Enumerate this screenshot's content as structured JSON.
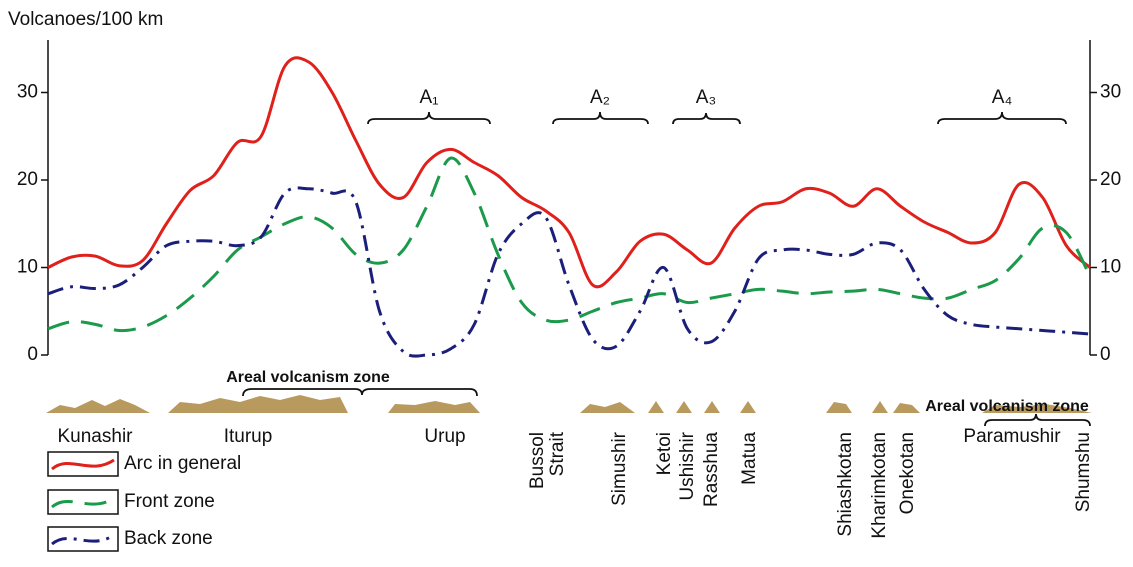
{
  "chart_data": {
    "type": "line",
    "ylabel": "Volcanoes/100 km",
    "categories": [
      null,
      null,
      null,
      null,
      null,
      null,
      null,
      null,
      null,
      null,
      null,
      null,
      null,
      null,
      null,
      null,
      null,
      null,
      null,
      null,
      null,
      null,
      null,
      null,
      null,
      null,
      null,
      null,
      null,
      null,
      null,
      null,
      null,
      null,
      null,
      null,
      null,
      null,
      null,
      null,
      null,
      null,
      null,
      null,
      null
    ],
    "series": [
      {
        "name": "Arc in general",
        "color": "#e0201b",
        "style": "solid",
        "values": [
          10,
          11.2,
          11.3,
          10.2,
          10.8,
          15,
          18.8,
          20.5,
          24.3,
          25,
          33,
          33.5,
          30,
          24.5,
          19.5,
          18,
          22,
          23.5,
          22,
          20.5,
          18,
          16.5,
          14,
          8,
          9.5,
          13,
          13.8,
          12,
          10.5,
          14.5,
          17,
          17.5,
          19,
          18.5,
          17,
          19,
          17,
          15.2,
          14,
          12.8,
          14,
          19.5,
          18,
          12.5,
          10
        ]
      },
      {
        "name": "Front zone",
        "color": "#1a9a4a",
        "style": "dashed",
        "values": [
          3,
          3.8,
          3.5,
          2.8,
          3.2,
          4.5,
          6.5,
          9,
          12,
          13.5,
          15,
          15.8,
          14.5,
          11.5,
          10.5,
          12,
          17,
          22.5,
          18.5,
          11.5,
          6,
          4,
          4,
          5,
          6,
          6.5,
          7,
          6,
          6.5,
          7,
          7.5,
          7.3,
          7,
          7.2,
          7.3,
          7.5,
          7,
          6.5,
          6.5,
          7.5,
          8.5,
          11,
          14.5,
          14,
          9
        ]
      },
      {
        "name": "Back zone",
        "color": "#1c1f7a",
        "style": "dash-dot",
        "values": [
          7,
          7.8,
          7.6,
          8,
          10,
          12.5,
          13,
          13,
          12.5,
          13.5,
          18.5,
          19,
          18.5,
          17.5,
          5,
          0.4,
          0,
          0.7,
          3.5,
          11.5,
          15,
          15.8,
          8,
          1.8,
          1,
          5,
          10,
          3,
          1.5,
          5,
          11,
          12,
          12,
          11.5,
          11.5,
          12.8,
          12,
          7.5,
          4.5,
          3.5,
          3.2,
          3,
          2.8,
          2.6,
          2.4
        ]
      }
    ],
    "ylim": [
      0,
      36
    ],
    "yticks": [
      0,
      10,
      20,
      30
    ],
    "zone_labels": [
      "A₁",
      "A₂",
      "A₃",
      "A₄"
    ],
    "areal_zones": [
      "Areal volcanism zone",
      "Areal volcanism zone"
    ],
    "islands": [
      "Kunashir",
      "Iturup",
      "Urup",
      "Bussol Strait",
      "Simushir",
      "Ketoi",
      "Ushishir",
      "Rasshua",
      "Matua",
      "Shiashkotan",
      "Kharimkotan",
      "Onekotan",
      "Paramushir",
      "Shumshu"
    ]
  }
}
